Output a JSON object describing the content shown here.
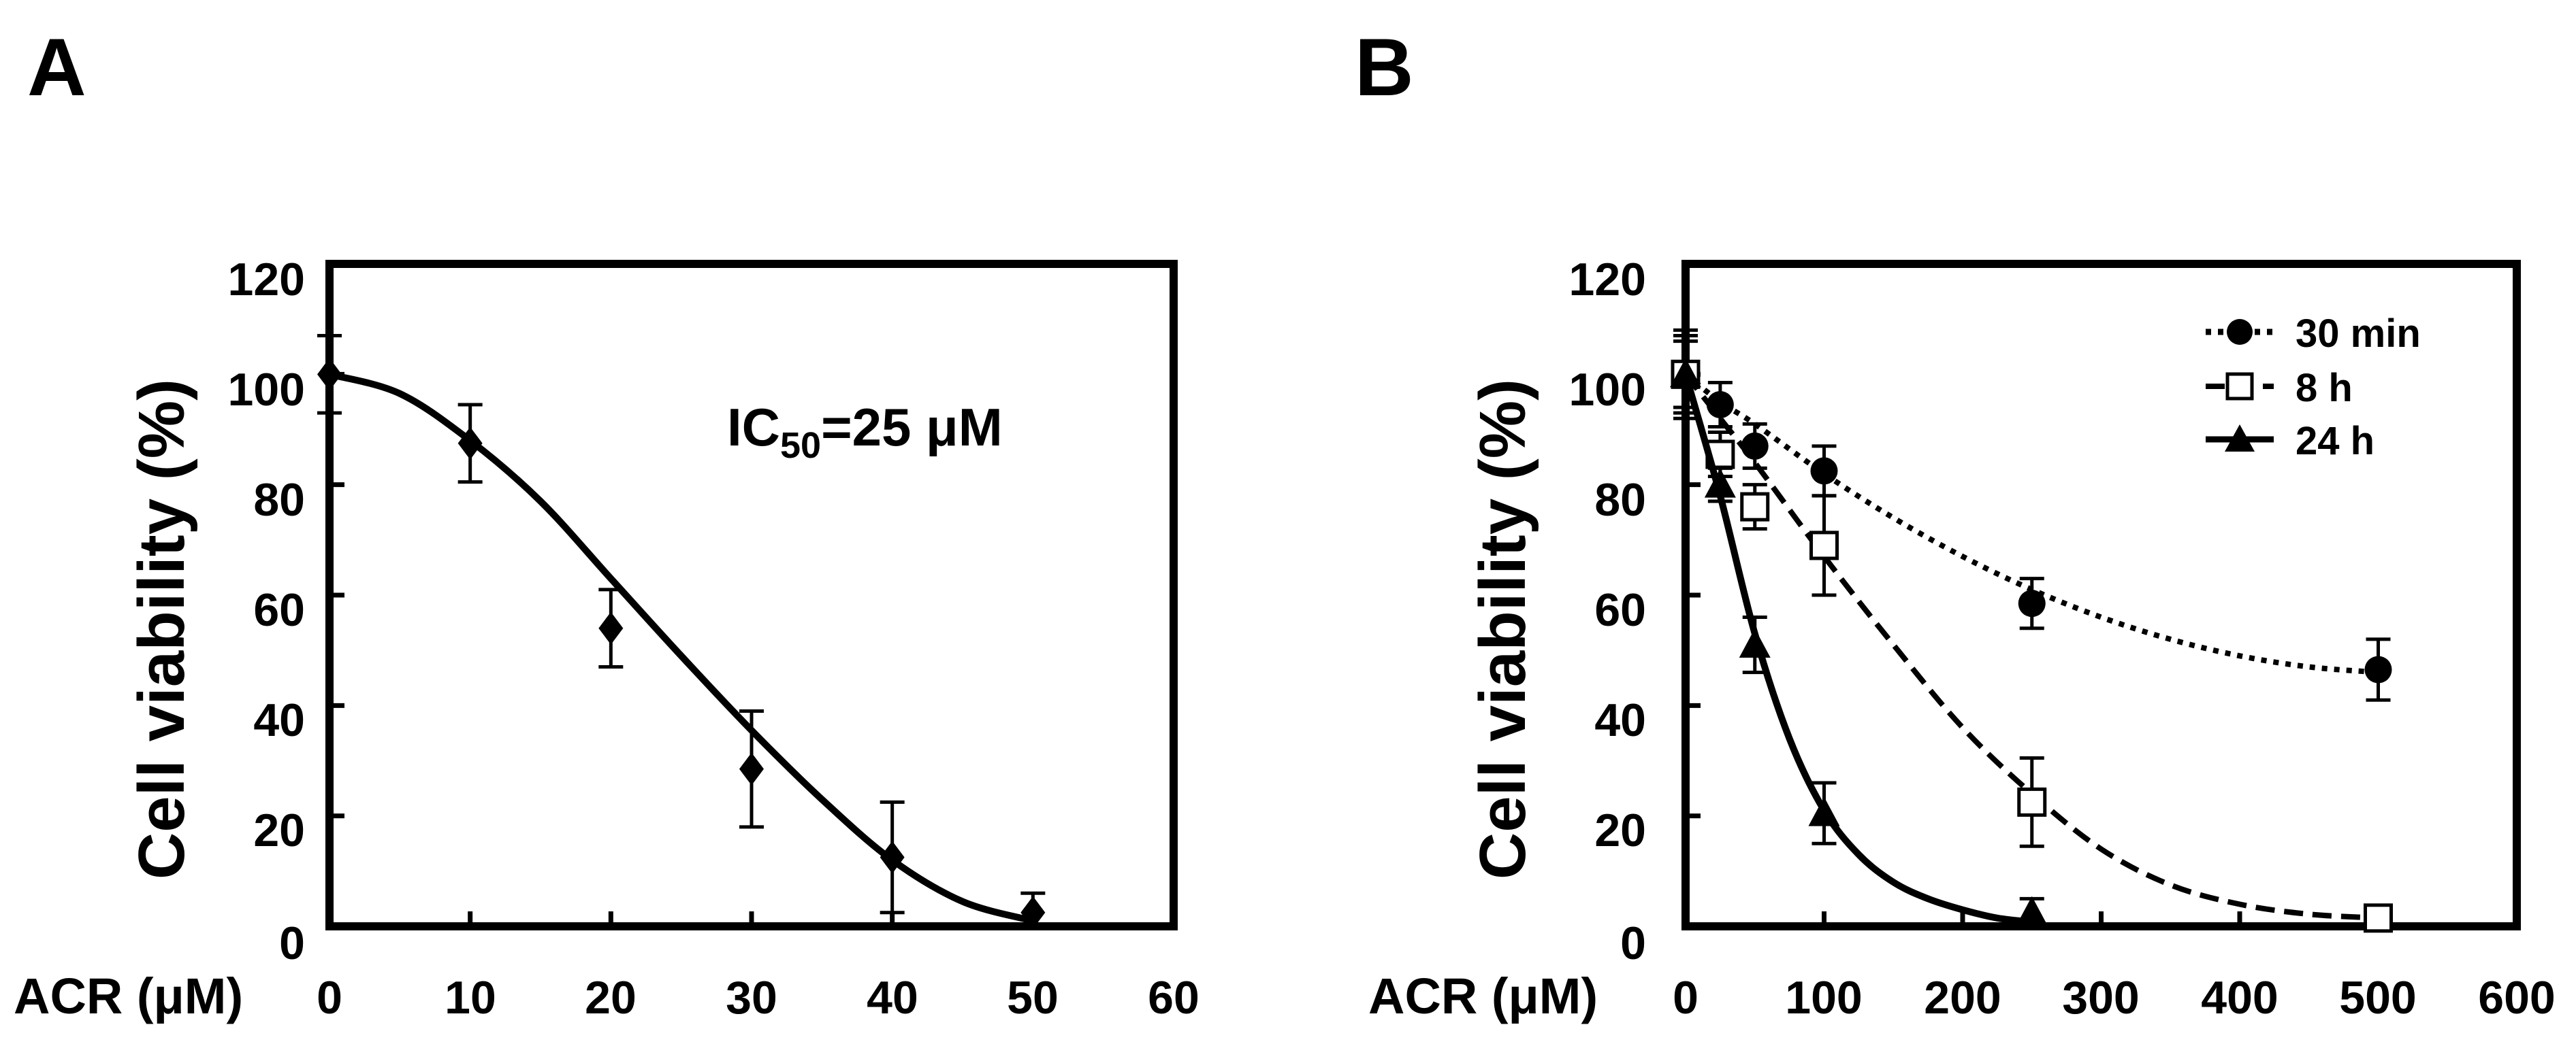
{
  "chart_data": [
    {
      "panel": "A",
      "type": "line",
      "title": "",
      "xlabel": "ACR (μM)",
      "ylabel": "Cell viability (%)",
      "xlim": [
        0,
        60
      ],
      "ylim": [
        0,
        120
      ],
      "xticks": [
        0,
        10,
        20,
        30,
        40,
        50,
        60
      ],
      "yticks": [
        0,
        20,
        40,
        60,
        80,
        100,
        120
      ],
      "grid": false,
      "annotation": {
        "main": "IC",
        "sub": "50",
        "rest": "=25 μM"
      },
      "series": [
        {
          "name": "ACR",
          "marker": "diamond",
          "line": "solid",
          "x": [
            0,
            10,
            20,
            30,
            40,
            50
          ],
          "y": [
            100,
            87.5,
            54,
            28.5,
            12.5,
            2.5
          ],
          "err": [
            7,
            7,
            7,
            10.5,
            10,
            3.5
          ],
          "fit": {
            "x": [
              0,
              5,
              10,
              15,
              20,
              25,
              30,
              35,
              40,
              45,
              50
            ],
            "y": [
              100,
              96.5,
              88,
              77,
              63,
              49,
              35.5,
              23,
              12,
              4.5,
              1
            ]
          }
        }
      ]
    },
    {
      "panel": "B",
      "type": "line",
      "title": "",
      "xlabel": "ACR (μM)",
      "ylabel": "Cell viability (%)",
      "xlim": [
        0,
        600
      ],
      "ylim": [
        0,
        120
      ],
      "xticks": [
        0,
        100,
        200,
        300,
        400,
        500,
        600
      ],
      "yticks": [
        0,
        20,
        40,
        60,
        80,
        100,
        120
      ],
      "grid": false,
      "legend_position": "top-right",
      "series": [
        {
          "name": "30 min",
          "marker": "circle",
          "line": "dotted",
          "x": [
            0,
            25,
            50,
            100,
            250,
            500
          ],
          "y": [
            100,
            94.5,
            87,
            82.5,
            58.5,
            46.5
          ],
          "err": [
            8,
            4,
            4,
            4.5,
            4.5,
            5.5
          ],
          "fit": {
            "x": [
              0,
              25,
              50,
              100,
              150,
              200,
              250,
              300,
              350,
              400,
              450,
              500
            ],
            "y": [
              100,
              95,
              91,
              82,
              74,
              67,
              61,
              56,
              52,
              49,
              47,
              46
            ]
          }
        },
        {
          "name": "8 h",
          "marker": "square-open",
          "line": "dashed",
          "x": [
            0,
            25,
            50,
            100,
            250,
            500
          ],
          "y": [
            100,
            85.5,
            76,
            69,
            22.5,
            1.5
          ],
          "err": [
            7,
            4,
            4,
            9,
            8,
            1.5
          ],
          "fit": {
            "x": [
              0,
              25,
              50,
              100,
              150,
              200,
              250,
              300,
              350,
              400,
              450,
              500
            ],
            "y": [
              100,
              92,
              84,
              67,
              51,
              36,
              24,
              14,
              7.5,
              4,
              2.2,
              1.5
            ]
          }
        },
        {
          "name": "24 h",
          "marker": "triangle",
          "line": "solid",
          "x": [
            0,
            25,
            50,
            100,
            250
          ],
          "y": [
            100,
            80,
            51,
            20.5,
            2.5
          ],
          "err": [
            6,
            3,
            5,
            5.5,
            2.5
          ],
          "fit": {
            "x": [
              0,
              25,
              50,
              75,
              100,
              125,
              150,
              175,
              200,
              225,
              250
            ],
            "y": [
              100,
              78,
              53,
              34,
              21,
              13,
              8,
              5,
              3,
              1.5,
              0.8
            ]
          }
        }
      ]
    }
  ]
}
